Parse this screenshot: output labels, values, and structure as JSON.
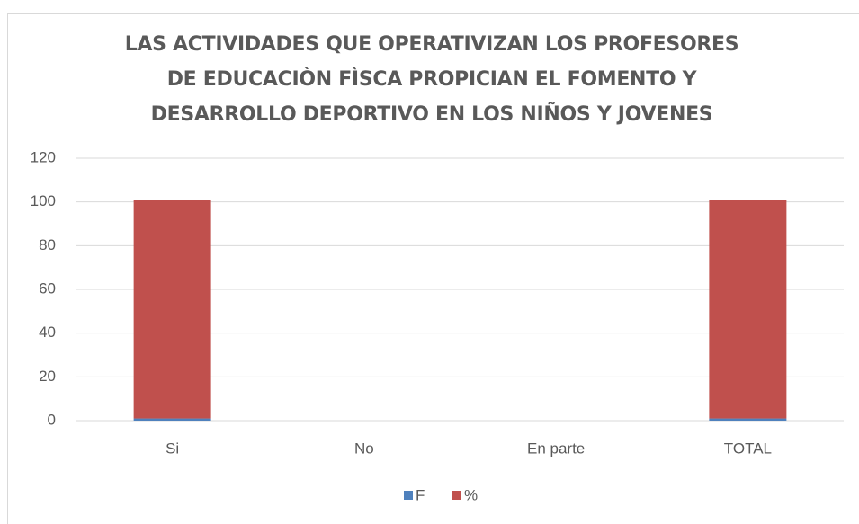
{
  "chart_data": {
    "type": "stacked_bar",
    "title": "LAS ACTIVIDADES QUE OPERATIVIZAN LOS PROFESORES DE EDUCACIÒN FÌSCA PROPICIAN EL FOMENTO Y DESARROLLO DEPORTIVO EN LOS NIÑOS Y JOVENES",
    "categories": [
      "Si",
      "No",
      "En parte",
      "TOTAL"
    ],
    "series": [
      {
        "name": "F",
        "color": "#4f81bd",
        "values": [
          1,
          0,
          0,
          1
        ]
      },
      {
        "name": "%",
        "color": "#c0504d",
        "values": [
          100,
          0,
          0,
          100
        ]
      }
    ],
    "ylim": [
      0,
      120
    ],
    "yticks": [
      0,
      20,
      40,
      60,
      80,
      100,
      120
    ],
    "grid": true,
    "legend": "bottom"
  }
}
